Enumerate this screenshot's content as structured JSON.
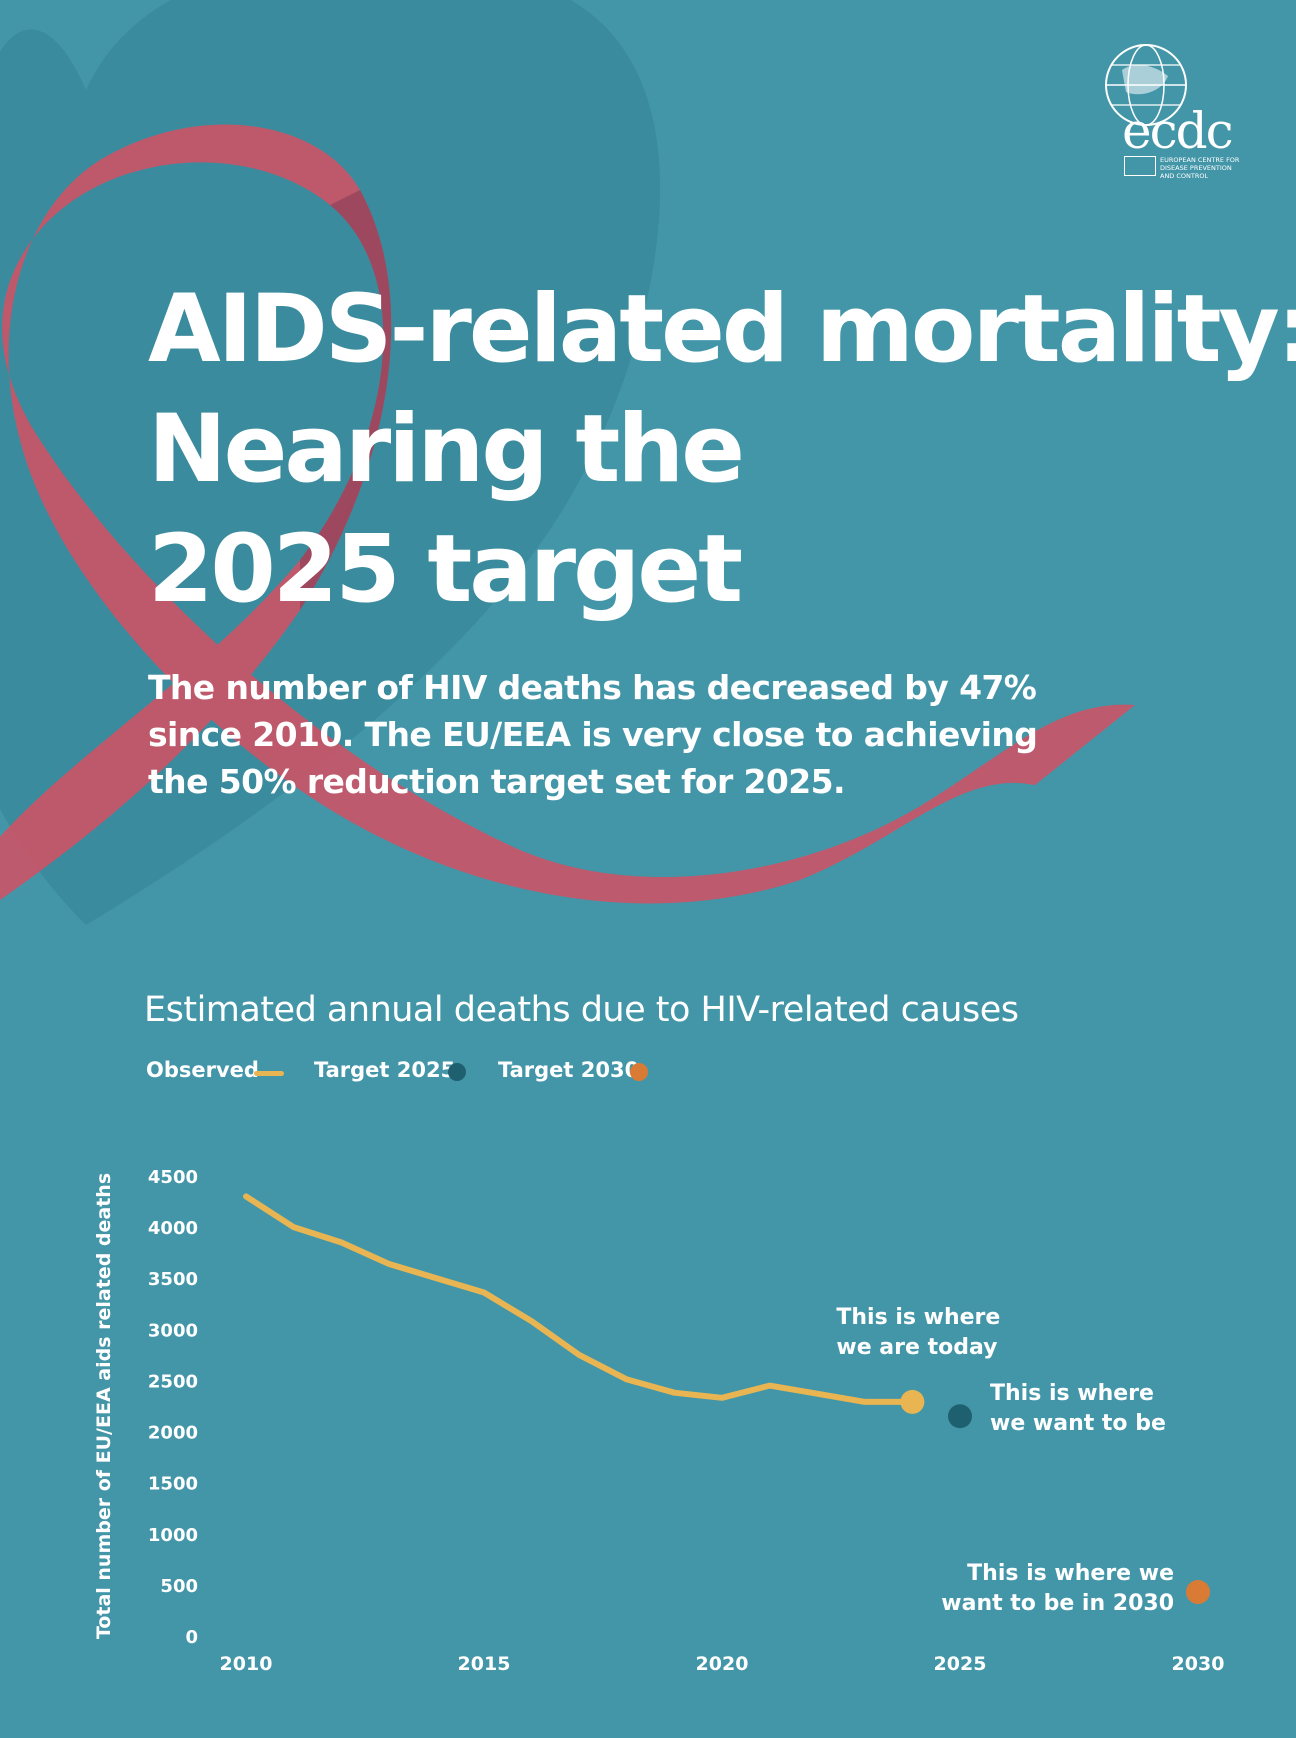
{
  "logo": {
    "wordmark": "ecdc",
    "agency_lines": [
      "EUROPEAN CENTRE FOR",
      "DISEASE PREVENTION",
      "AND CONTROL"
    ]
  },
  "headline": {
    "lines": [
      "AIDS-related mortality:",
      "Nearing the",
      "2025 target"
    ]
  },
  "subtitle": {
    "lines": [
      "The number of HIV deaths has decreased by 47%",
      "since 2010. The EU/EEA is very close to achieving",
      "the 50% reduction target set for 2025."
    ]
  },
  "colors": {
    "background": "#4396a8",
    "ribbon": "#c4576a",
    "observed": "#e8b552",
    "target_2025": "#1e6070",
    "target_2030": "#d97b35"
  },
  "chart_data": {
    "type": "line",
    "title": "Estimated annual deaths due to HIV-related causes",
    "ylabel": "Total number of EU/EEA aids related deaths",
    "xlabel": "",
    "ylim": [
      0,
      4500
    ],
    "yticks": [
      0,
      500,
      1000,
      1500,
      2000,
      2500,
      3000,
      3500,
      4000,
      4500
    ],
    "xlim": [
      2010,
      2030
    ],
    "xticks": [
      2010,
      2015,
      2020,
      2025,
      2030
    ],
    "grid": false,
    "legend_position": "top-left",
    "legend": [
      {
        "label": "Observed",
        "marker": "line",
        "color": "#e8b552"
      },
      {
        "label": "Target 2025",
        "marker": "dot",
        "color": "#1e6070"
      },
      {
        "label": "Target 2030",
        "marker": "dot",
        "color": "#d97b35"
      }
    ],
    "series": [
      {
        "name": "Observed",
        "color": "#e8b552",
        "x": [
          2010,
          2011,
          2012,
          2013,
          2014,
          2015,
          2016,
          2017,
          2018,
          2019,
          2020,
          2021,
          2022,
          2023,
          2024
        ],
        "values": [
          4300,
          4000,
          3850,
          3640,
          3500,
          3360,
          3080,
          2750,
          2510,
          2380,
          2330,
          2450,
          2370,
          2290,
          2290
        ]
      }
    ],
    "points": [
      {
        "name": "Target 2025",
        "x": 2025,
        "value": 2150,
        "color": "#1e6070"
      },
      {
        "name": "Target 2030",
        "x": 2030,
        "value": 430,
        "color": "#d97b35"
      }
    ],
    "annotations": [
      {
        "lines": [
          "This is where",
          "we are today"
        ]
      },
      {
        "lines": [
          "This is where",
          "we want to be"
        ]
      },
      {
        "lines": [
          "This is where we",
          "want to be in 2030"
        ]
      }
    ]
  }
}
